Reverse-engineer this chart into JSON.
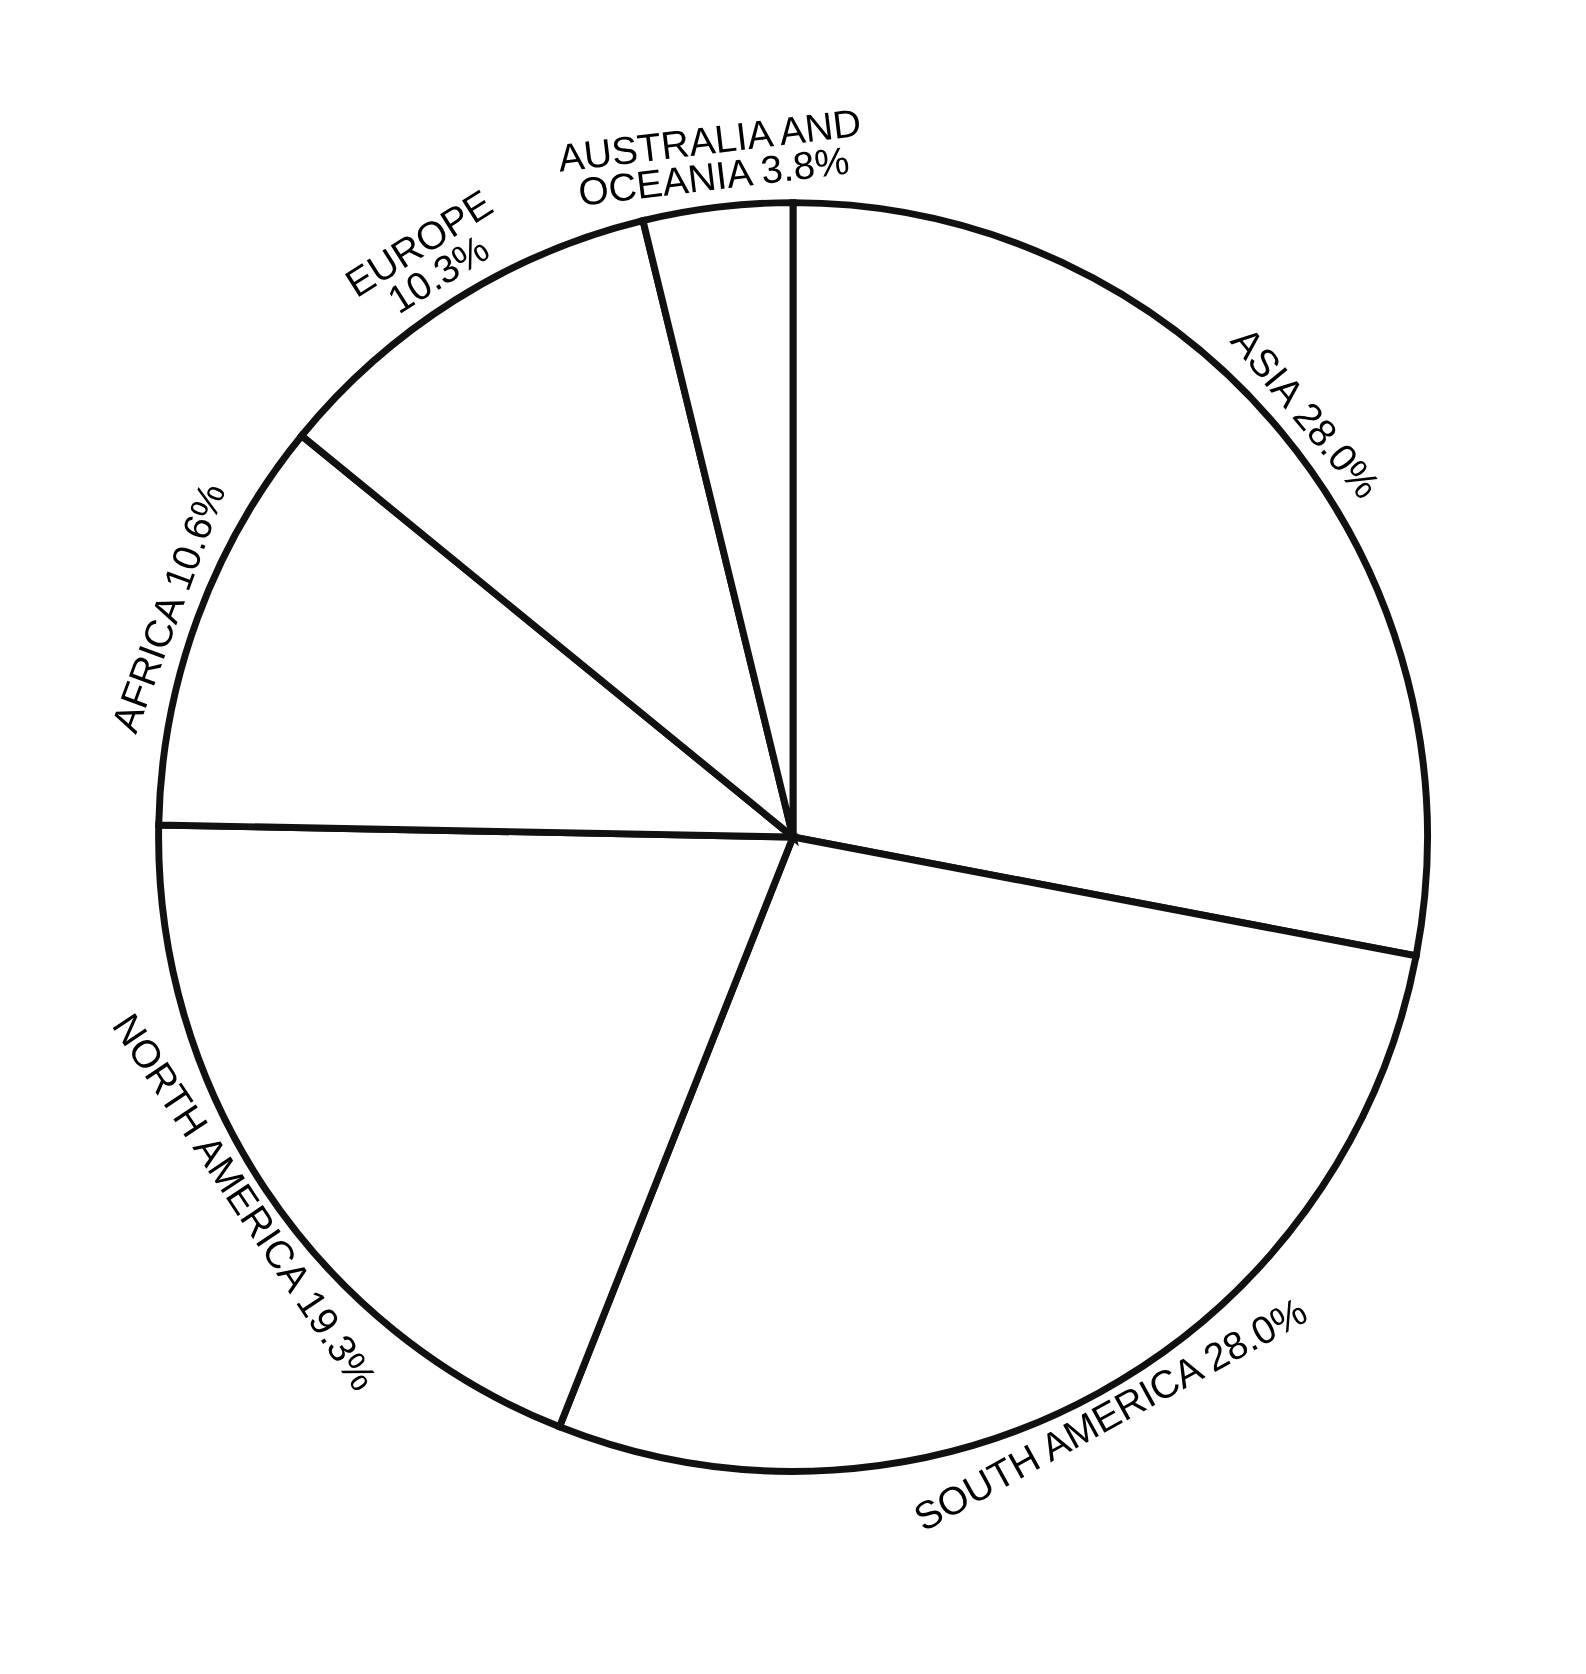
{
  "chart_data": {
    "type": "pie",
    "categories": [
      "ASIA",
      "SOUTH AMERICA",
      "NORTH AMERICA",
      "AFRICA",
      "EUROPE",
      "AUSTRALIA AND\nOCEANIA"
    ],
    "values": [
      28.0,
      28.0,
      19.3,
      10.6,
      10.3,
      3.8
    ],
    "value_labels": [
      "28.0%",
      "28.0%",
      "19.3%",
      "10.6%",
      "10.3%",
      "3.8%"
    ],
    "colors": [
      "#ffffff",
      "#ffffff",
      "#ffffff",
      "#ffffff",
      "#ffffff",
      "#ffffff"
    ],
    "legend": false
  }
}
